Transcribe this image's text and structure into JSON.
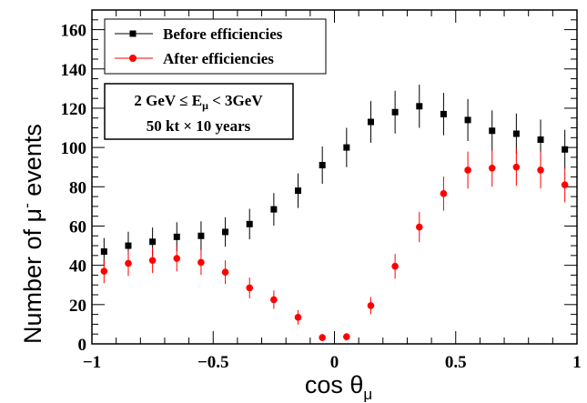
{
  "chart_data": {
    "type": "scatter",
    "title": "",
    "xlabel": "cos θ",
    "xlabel_sub": "μ",
    "ylabel": "Number of μ",
    "ylabel_sup": "-",
    "ylabel_tail": " events",
    "xlim": [
      -1,
      1
    ],
    "ylim": [
      0,
      170
    ],
    "x_major_ticks": [
      -1,
      -0.5,
      0,
      0.5,
      1
    ],
    "x_tick_labels": [
      "−1",
      "−0.5",
      "0",
      "0.5",
      "1"
    ],
    "y_major_ticks": [
      0,
      20,
      40,
      60,
      80,
      100,
      120,
      140,
      160
    ],
    "y_tick_labels": [
      "0",
      "20",
      "40",
      "60",
      "80",
      "100",
      "120",
      "140",
      "160"
    ],
    "legend_position": "top-left",
    "x": [
      -0.95,
      -0.85,
      -0.75,
      -0.65,
      -0.55,
      -0.45,
      -0.35,
      -0.25,
      -0.15,
      -0.05,
      0.05,
      0.15,
      0.25,
      0.35,
      0.45,
      0.55,
      0.65,
      0.75,
      0.85,
      0.95
    ],
    "series": [
      {
        "name": "Before efficiencies",
        "color": "#000000",
        "marker": "square",
        "values": [
          47,
          50,
          52,
          54.5,
          55,
          57,
          61,
          68.5,
          78,
          91,
          100,
          113,
          118,
          121,
          117,
          114,
          108.5,
          107,
          104,
          99
        ],
        "errors": [
          6.9,
          7.1,
          7.2,
          7.4,
          7.4,
          7.5,
          7.8,
          8.3,
          8.8,
          9.5,
          10,
          10.6,
          10.9,
          11,
          10.8,
          10.7,
          10.4,
          10.3,
          10.2,
          10
        ]
      },
      {
        "name": "After efficiencies",
        "color": "#ff0000",
        "marker": "circle",
        "values": [
          37,
          41,
          42.5,
          43.5,
          41.5,
          36.5,
          28.5,
          22.5,
          13.5,
          3.2,
          3.6,
          19.5,
          39.5,
          59.5,
          76.5,
          88.5,
          89.5,
          90,
          88.5,
          81
        ],
        "errors": [
          6.1,
          6.4,
          6.5,
          6.6,
          6.4,
          6,
          5.3,
          4.7,
          3.7,
          1.8,
          1.9,
          4.4,
          6.3,
          7.7,
          8.7,
          9.4,
          9.5,
          9.5,
          9.4,
          9
        ]
      }
    ],
    "annotation_lines": [
      {
        "pre": "2 GeV  ≤ E",
        "sub": "μ",
        "post": " < 3GeV"
      },
      {
        "pre": "50 kt  × 10 years",
        "sub": "",
        "post": ""
      }
    ]
  }
}
